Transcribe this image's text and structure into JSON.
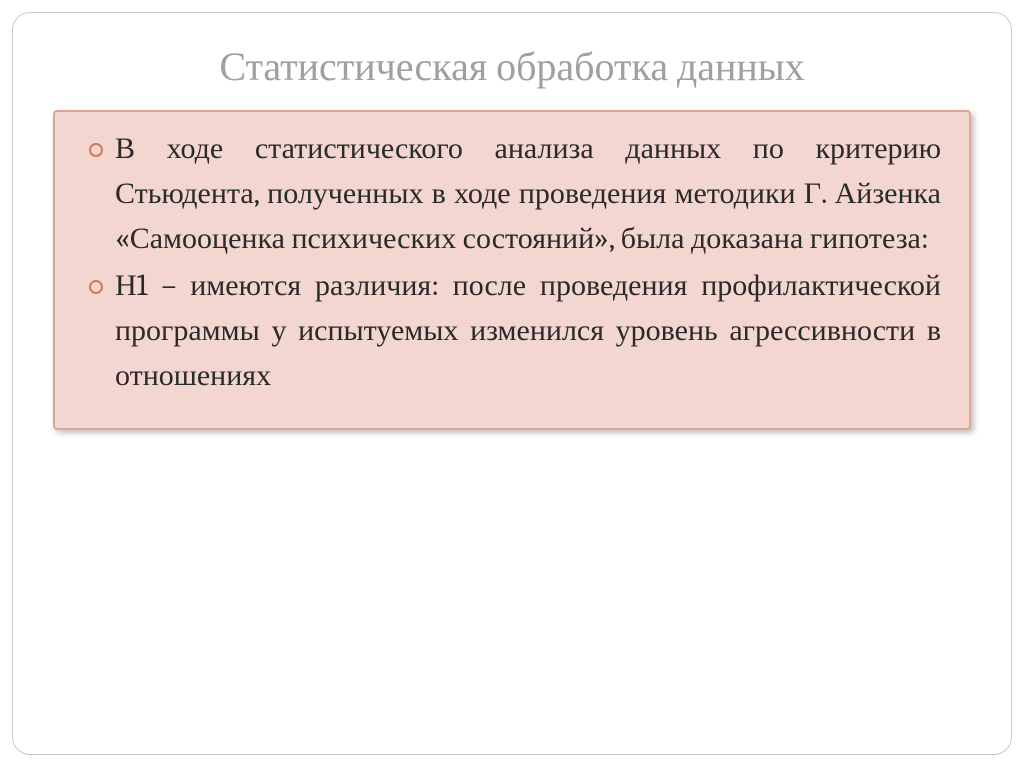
{
  "slide": {
    "title": "Статистическая обработка данных",
    "bullets": [
      "В ходе статистического анализа данных по критерию Стьюдента, полученных в ходе проведения методики Г. Айзенка «Самооценка психических состояний», была доказана гипотеза:",
      "Н1 – имеются различия: после проведения профилактической программы у испытуемых изменился уровень агрессивности в отношениях"
    ]
  },
  "styling": {
    "frame_border_color": "#c8c8c8",
    "frame_border_radius": 18,
    "title_color": "#a0a0a0",
    "title_fontsize": 40,
    "content_bg": "#f2d6cf",
    "content_border": "#d9a796",
    "bullet_marker_color": "#cf7b5a",
    "body_text_color": "#2a2a2a",
    "body_fontsize": 30,
    "body_line_height": 1.5,
    "text_align": "justify",
    "shadow": "3px 3px 6px rgba(0,0,0,0.25)"
  }
}
